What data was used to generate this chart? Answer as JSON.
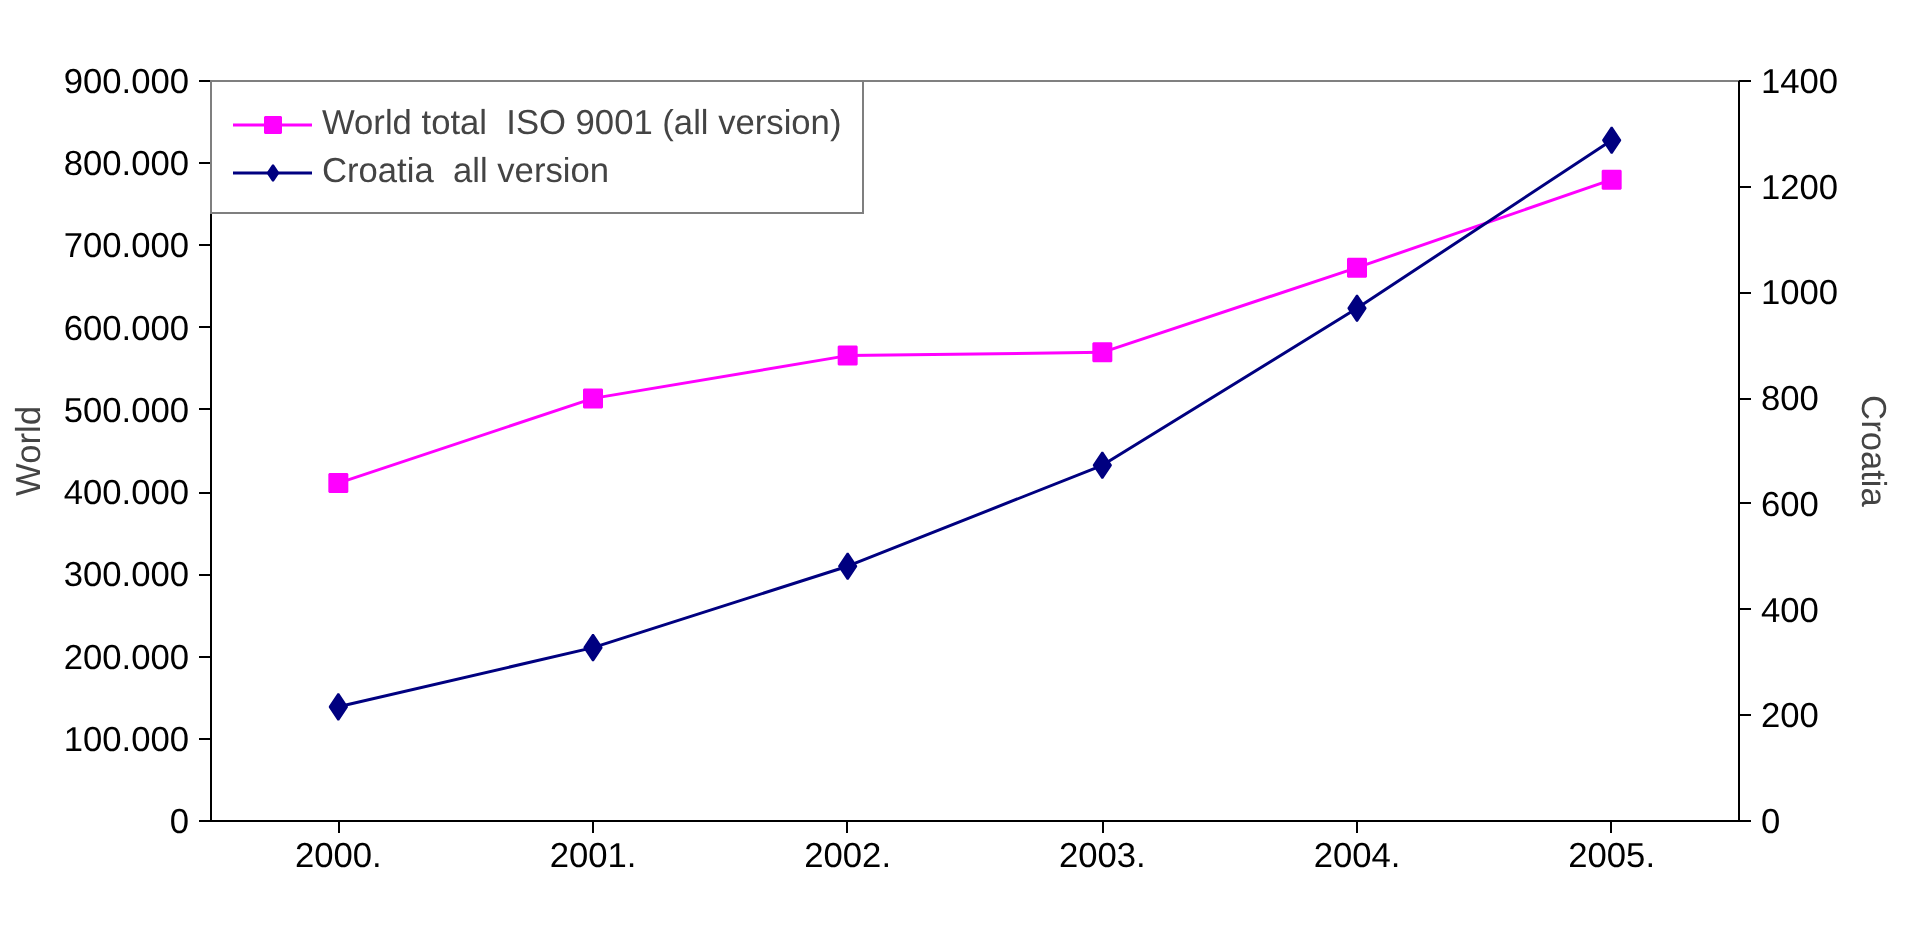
{
  "chart_data": {
    "type": "line",
    "ylabel": "World",
    "y2label": "Croatia",
    "categories": [
      "2000.",
      "2001.",
      "2002.",
      "2003.",
      "2004.",
      "2005."
    ],
    "series": [
      {
        "name": "World total  ISO 9001 (all version)",
        "color": "#ff00ff",
        "marker": "square",
        "values": [
          411000,
          514000,
          566000,
          570000,
          673000,
          780000
        ]
      },
      {
        "name": "Croatia  all version",
        "color": "#000080",
        "marker": "diamond",
        "axis": "y2",
        "values": [
          216,
          328,
          482,
          673,
          970,
          1288
        ]
      }
    ],
    "ylim": [
      0,
      900000
    ],
    "yticks": [
      {
        "value": 0,
        "label": "0"
      },
      {
        "value": 100000,
        "label": "100.000"
      },
      {
        "value": 200000,
        "label": "200.000"
      },
      {
        "value": 300000,
        "label": "300.000"
      },
      {
        "value": 400000,
        "label": "400.000"
      },
      {
        "value": 500000,
        "label": "500.000"
      },
      {
        "value": 600000,
        "label": "600.000"
      },
      {
        "value": 700000,
        "label": "700.000"
      },
      {
        "value": 800000,
        "label": "800.000"
      },
      {
        "value": 900000,
        "label": "900.000"
      }
    ],
    "y2lim": [
      0,
      1400
    ],
    "y2ticks": [
      0,
      200,
      400,
      600,
      800,
      1000,
      1200,
      1400
    ],
    "grid": false,
    "legend": "top left",
    "line_style": "solid"
  }
}
